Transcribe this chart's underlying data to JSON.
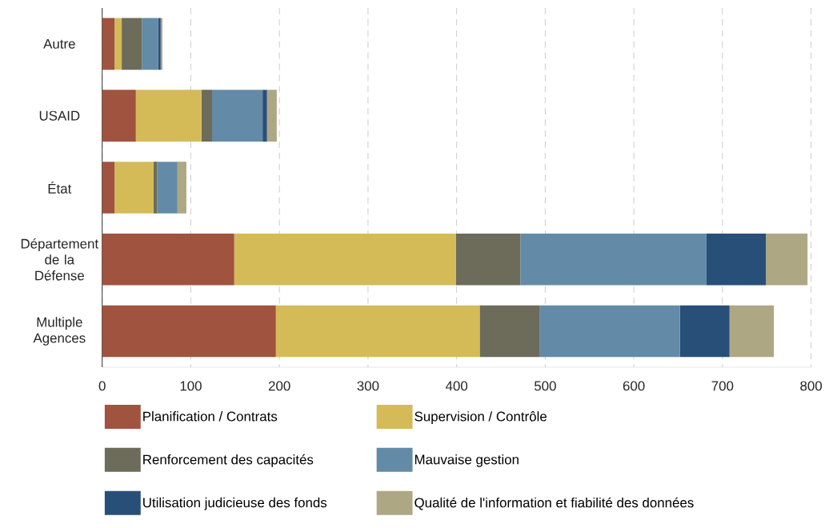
{
  "chart_data": {
    "type": "bar",
    "orientation": "horizontal",
    "stacked": true,
    "categories": [
      "Autre",
      "USAID",
      "État",
      "Département de la Défense",
      "Multiple Agences"
    ],
    "series": [
      {
        "name": "Planification / Contrats",
        "color": "#a0533f",
        "values": [
          14,
          38,
          14,
          149,
          196
        ]
      },
      {
        "name": "Supervision / Contrôle",
        "color": "#d4bb58",
        "values": [
          8,
          74,
          44,
          250,
          230
        ]
      },
      {
        "name": "Renforcement des capacités",
        "color": "#6d6c5a",
        "values": [
          23,
          12,
          4,
          73,
          68
        ]
      },
      {
        "name": "Mauvaise gestion",
        "color": "#638ba7",
        "values": [
          18,
          57,
          23,
          210,
          158
        ]
      },
      {
        "name": "Utilisation judicieuse des fonds",
        "color": "#284f78",
        "values": [
          3,
          5,
          0,
          67,
          56
        ]
      },
      {
        "name": "Qualité de l'information et fiabilité des données",
        "color": "#aea784",
        "values": [
          2,
          11,
          10,
          47,
          50
        ]
      }
    ],
    "xlim": [
      0,
      800
    ],
    "xticks": [
      0,
      100,
      200,
      300,
      400,
      500,
      600,
      700,
      800
    ],
    "grid": "x",
    "legend": "bottom"
  }
}
